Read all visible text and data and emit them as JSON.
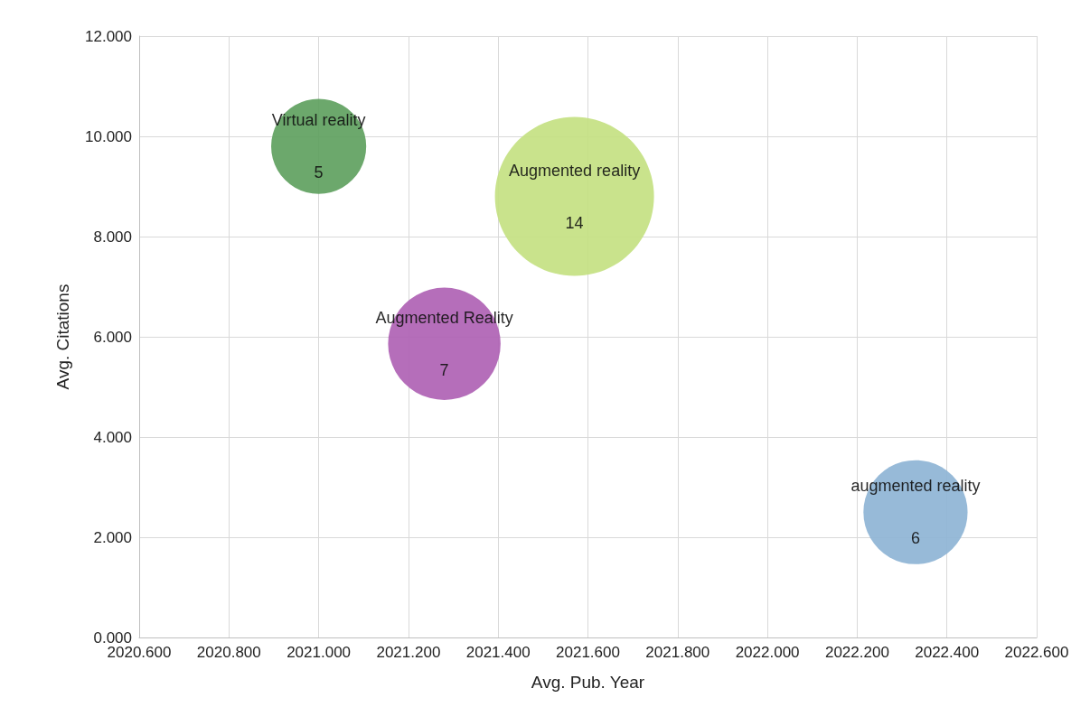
{
  "chart_data": {
    "type": "bubble",
    "xlabel": "Avg. Pub. Year",
    "ylabel": "Avg. Citations",
    "xlim": [
      2020.6,
      2022.6
    ],
    "xticks": [
      {
        "value": 2020.6,
        "label": "2020.600"
      },
      {
        "value": 2020.8,
        "label": "2020.800"
      },
      {
        "value": 2021.0,
        "label": "2021.000"
      },
      {
        "value": 2021.2,
        "label": "2021.200"
      },
      {
        "value": 2021.4,
        "label": "2021.400"
      },
      {
        "value": 2021.6,
        "label": "2021.600"
      },
      {
        "value": 2021.8,
        "label": "2021.800"
      },
      {
        "value": 2022.0,
        "label": "2022.000"
      },
      {
        "value": 2022.2,
        "label": "2022.200"
      },
      {
        "value": 2022.4,
        "label": "2022.400"
      },
      {
        "value": 2022.6,
        "label": "2022.600"
      }
    ],
    "ylim": [
      0,
      12
    ],
    "yticks": [
      {
        "value": 0,
        "label": "0.000"
      },
      {
        "value": 2,
        "label": "2.000"
      },
      {
        "value": 4,
        "label": "4.000"
      },
      {
        "value": 6,
        "label": "6.000"
      },
      {
        "value": 8,
        "label": "8.000"
      },
      {
        "value": 10,
        "label": "10.000"
      },
      {
        "value": 12,
        "label": "12.000"
      }
    ],
    "grid": true,
    "legend": false,
    "series": [
      {
        "name": "Virtual reality",
        "color": "#5c9e5c",
        "x": [
          2021.0
        ],
        "values": [
          9.8
        ],
        "sizes": [
          5
        ],
        "value_labels": [
          "5"
        ]
      },
      {
        "name": "Augmented reality",
        "color": "#c3e07f",
        "x": [
          2021.57
        ],
        "values": [
          8.8
        ],
        "sizes": [
          14
        ],
        "value_labels": [
          "14"
        ]
      },
      {
        "name": "Augmented Reality",
        "color": "#ad5eb2",
        "x": [
          2021.28
        ],
        "values": [
          5.86
        ],
        "sizes": [
          7
        ],
        "value_labels": [
          "7"
        ]
      },
      {
        "name": "augmented reality",
        "color": "#8cb2d4",
        "x": [
          2022.33
        ],
        "values": [
          2.5
        ],
        "sizes": [
          6
        ],
        "value_labels": [
          "6"
        ]
      }
    ]
  }
}
